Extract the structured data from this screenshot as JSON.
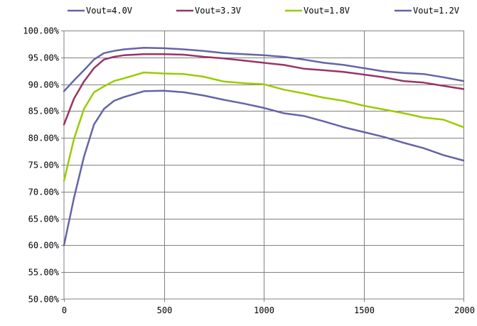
{
  "chart_data": {
    "type": "line",
    "title": "",
    "xlabel": "",
    "ylabel": "",
    "xlim": [
      0,
      2000
    ],
    "ylim": [
      50,
      100
    ],
    "x_ticks": [
      0,
      500,
      1000,
      1500,
      2000
    ],
    "x_tick_labels": [
      "0",
      "500",
      "1000",
      "1500",
      "2000"
    ],
    "y_ticks": [
      50,
      55,
      60,
      65,
      70,
      75,
      80,
      85,
      90,
      95,
      100
    ],
    "y_tick_labels": [
      "50.00%",
      "55.00%",
      "60.00%",
      "65.00%",
      "70.00%",
      "75.00%",
      "80.00%",
      "85.00%",
      "90.00%",
      "95.00%",
      "100.00%"
    ],
    "grid": true,
    "legend_position": "top",
    "x": [
      0,
      50,
      100,
      150,
      200,
      250,
      300,
      400,
      500,
      600,
      700,
      800,
      900,
      1000,
      1100,
      1200,
      1300,
      1400,
      1500,
      1600,
      1700,
      1800,
      1900,
      2000
    ],
    "series": [
      {
        "name": "Vout=4.0V",
        "color": "#6464a8",
        "values": [
          88.7,
          90.7,
          92.6,
          94.6,
          95.8,
          96.2,
          96.5,
          96.8,
          96.7,
          96.5,
          96.2,
          95.8,
          95.6,
          95.4,
          95.1,
          94.6,
          94.0,
          93.6,
          93.0,
          92.4,
          92.1,
          91.9,
          91.3,
          90.6
        ]
      },
      {
        "name": "Vout=3.3V",
        "color": "#993366",
        "values": [
          82.5,
          87.3,
          90.5,
          93.0,
          94.6,
          95.1,
          95.4,
          95.6,
          95.6,
          95.5,
          95.1,
          94.8,
          94.4,
          94.0,
          93.6,
          92.9,
          92.6,
          92.3,
          91.8,
          91.3,
          90.6,
          90.3,
          89.7,
          89.1
        ]
      },
      {
        "name": "Vout=1.8V",
        "color": "#99cc00",
        "values": [
          72.0,
          79.8,
          85.4,
          88.5,
          89.6,
          90.6,
          91.1,
          92.2,
          92.0,
          91.9,
          91.4,
          90.5,
          90.2,
          90.0,
          89.0,
          88.3,
          87.5,
          86.9,
          86.0,
          85.3,
          84.6,
          83.8,
          83.4,
          82.0
        ]
      },
      {
        "name": "Vout=1.2V",
        "color": "#6464a8",
        "values": [
          60.0,
          68.8,
          76.5,
          82.5,
          85.4,
          86.9,
          87.6,
          88.7,
          88.8,
          88.5,
          87.9,
          87.1,
          86.4,
          85.6,
          84.6,
          84.1,
          83.1,
          82.0,
          81.1,
          80.2,
          79.1,
          78.1,
          76.8,
          75.8
        ]
      }
    ]
  }
}
